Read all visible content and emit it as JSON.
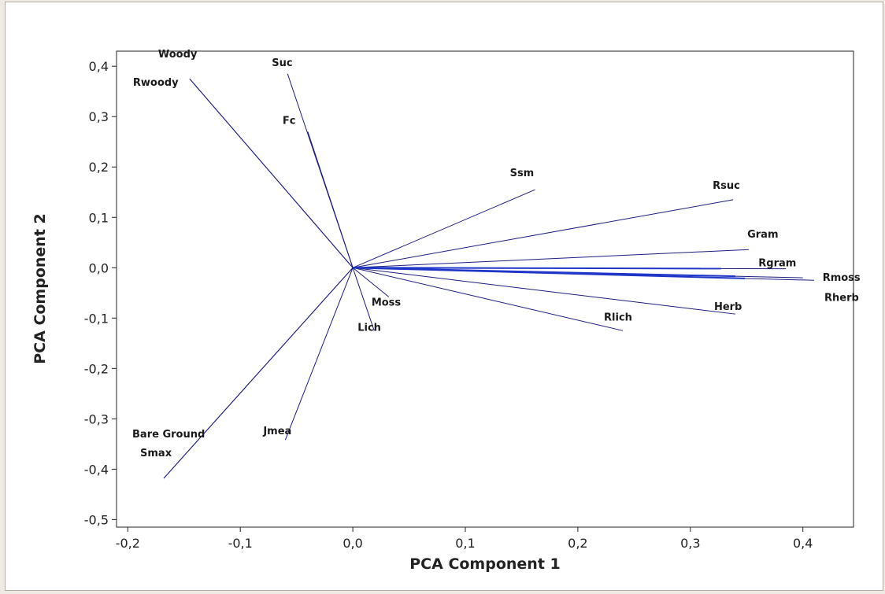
{
  "chart_data": {
    "type": "line",
    "subtype": "pca-loading-plot",
    "title": "",
    "xlabel": "PCA Component 1",
    "ylabel": "PCA Component 2",
    "xlim": [
      -0.21,
      0.445
    ],
    "ylim": [
      -0.515,
      0.43
    ],
    "xticks": [
      -0.2,
      -0.1,
      0.0,
      0.1,
      0.2,
      0.3,
      0.4
    ],
    "yticks": [
      0.4,
      0.3,
      0.2,
      0.1,
      0.0,
      -0.1,
      -0.2,
      -0.3,
      -0.4,
      -0.5
    ],
    "xtick_labels": [
      "-0,2",
      "-0,1",
      "0,0",
      "0,1",
      "0,2",
      "0,3",
      "0,4"
    ],
    "ytick_labels": [
      "0,4",
      "0,3",
      "0,2",
      "0,1",
      "0,0",
      "-0,1",
      "-0,2",
      "-0,3",
      "-0,4",
      "-0,5"
    ],
    "line_color": "#1c1c80",
    "highlight_color": "#1f35c8",
    "grid": false,
    "origin": [
      0.0,
      0.0
    ],
    "vectors": [
      {
        "name": "Woody",
        "x": -0.145,
        "y": 0.375
      },
      {
        "name": "Rwoody",
        "x": -0.145,
        "y": 0.375
      },
      {
        "name": "Suc",
        "x": -0.058,
        "y": 0.385
      },
      {
        "name": "Fc",
        "x": -0.04,
        "y": 0.27
      },
      {
        "name": "Ssm",
        "x": 0.162,
        "y": 0.155
      },
      {
        "name": "Rsuc",
        "x": 0.338,
        "y": 0.135
      },
      {
        "name": "Gram",
        "x": 0.352,
        "y": 0.036
      },
      {
        "name": "Rgram",
        "x": 0.385,
        "y": -0.002
      },
      {
        "name": "Rmoss",
        "x": 0.4,
        "y": -0.02
      },
      {
        "name": "Rherb",
        "x": 0.41,
        "y": -0.025
      },
      {
        "name": "Herb",
        "x": 0.34,
        "y": -0.092
      },
      {
        "name": "Rlich",
        "x": 0.24,
        "y": -0.125
      },
      {
        "name": "Moss",
        "x": 0.032,
        "y": -0.058
      },
      {
        "name": "Lich",
        "x": 0.019,
        "y": -0.125
      },
      {
        "name": "Jmea",
        "x": -0.06,
        "y": -0.342
      },
      {
        "name": "Bare Ground",
        "x": -0.168,
        "y": -0.418
      },
      {
        "name": "Smax",
        "x": -0.168,
        "y": -0.418
      }
    ]
  }
}
